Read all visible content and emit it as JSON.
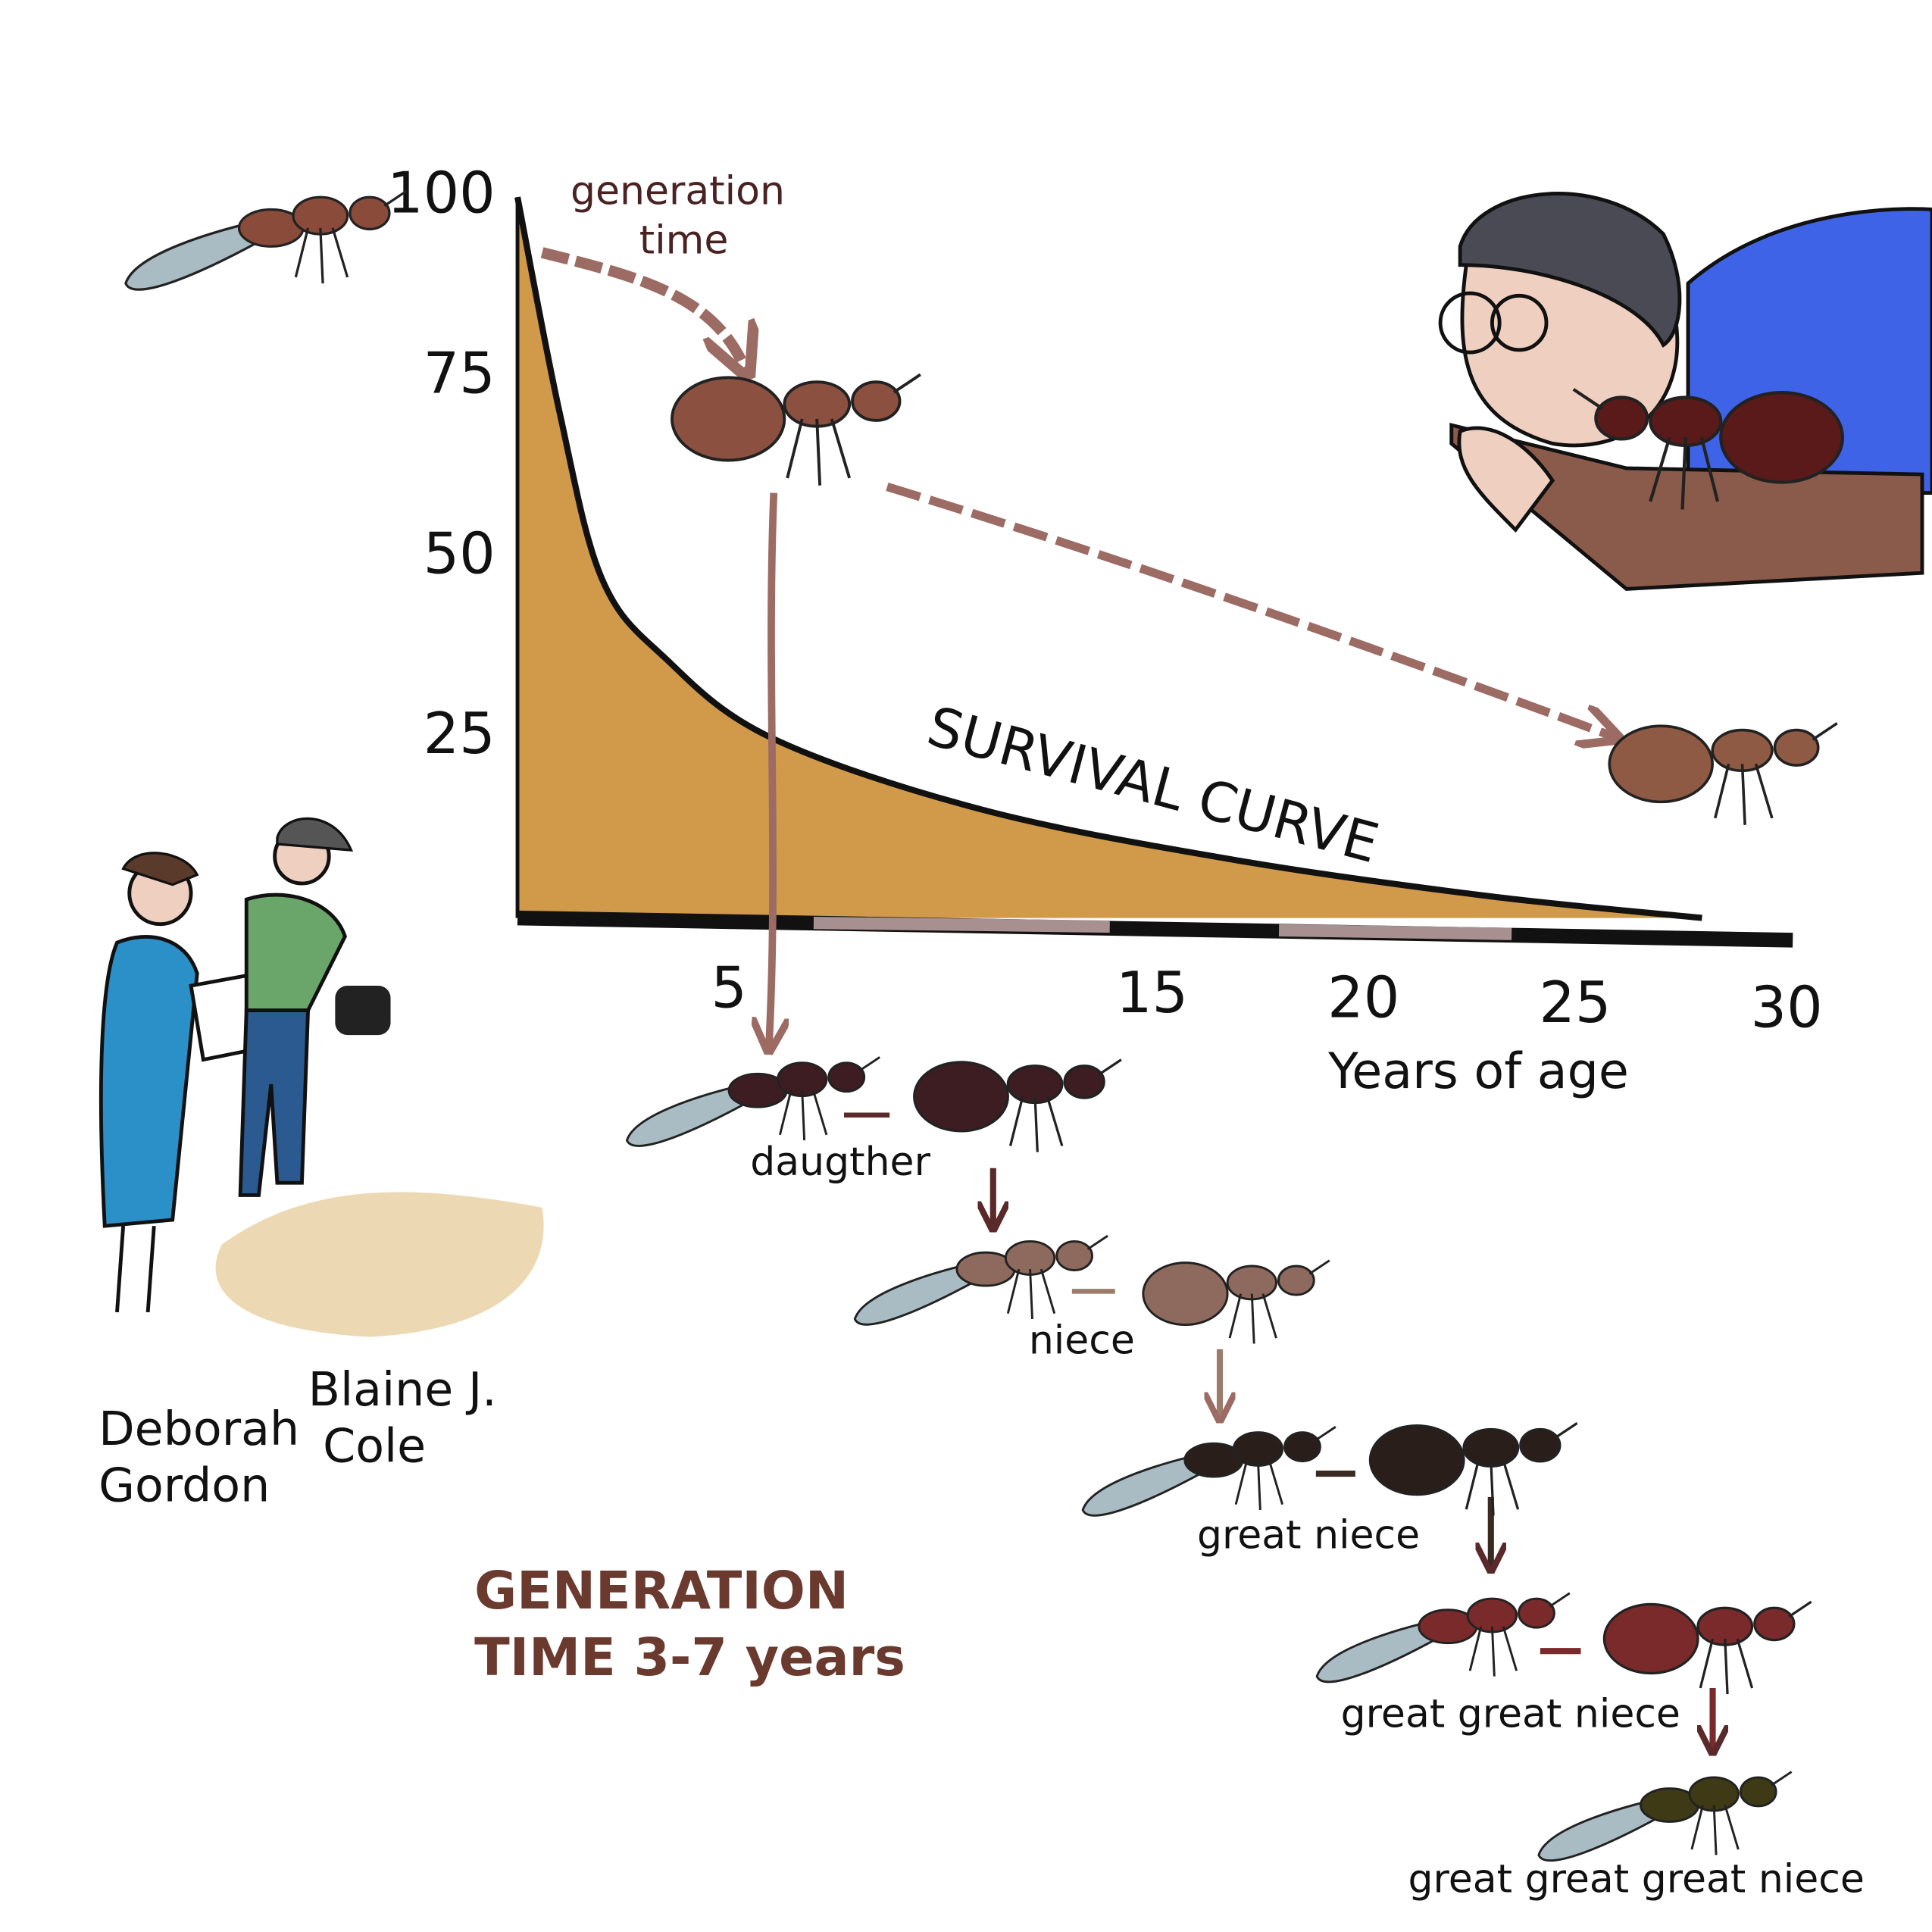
{
  "chart_data": {
    "type": "area",
    "curve_label": "SURVIVAL CURVE",
    "x_label": "Years of age",
    "x": [
      0,
      1,
      2,
      3.5,
      6,
      11,
      17,
      23,
      28
    ],
    "values": [
      100,
      70,
      47,
      36,
      25,
      15,
      8,
      3,
      0
    ],
    "color": "#d19a4a",
    "xlim": [
      0,
      30
    ],
    "xticks": [
      5,
      15,
      20,
      25,
      30
    ],
    "ylim": [
      0,
      100
    ],
    "yticks": [
      25,
      50,
      75,
      100
    ],
    "grid": false
  },
  "generation_time": [
    "generation",
    "time"
  ],
  "lineage": [
    "daugther",
    "niece",
    "great niece",
    "great great niece",
    "great great great niece"
  ],
  "people": {
    "first": [
      "Deborah",
      "Gordon"
    ],
    "second": [
      "Blaine J.",
      "Cole"
    ]
  },
  "footer": [
    "GENERATION",
    "TIME 3-7 years"
  ]
}
